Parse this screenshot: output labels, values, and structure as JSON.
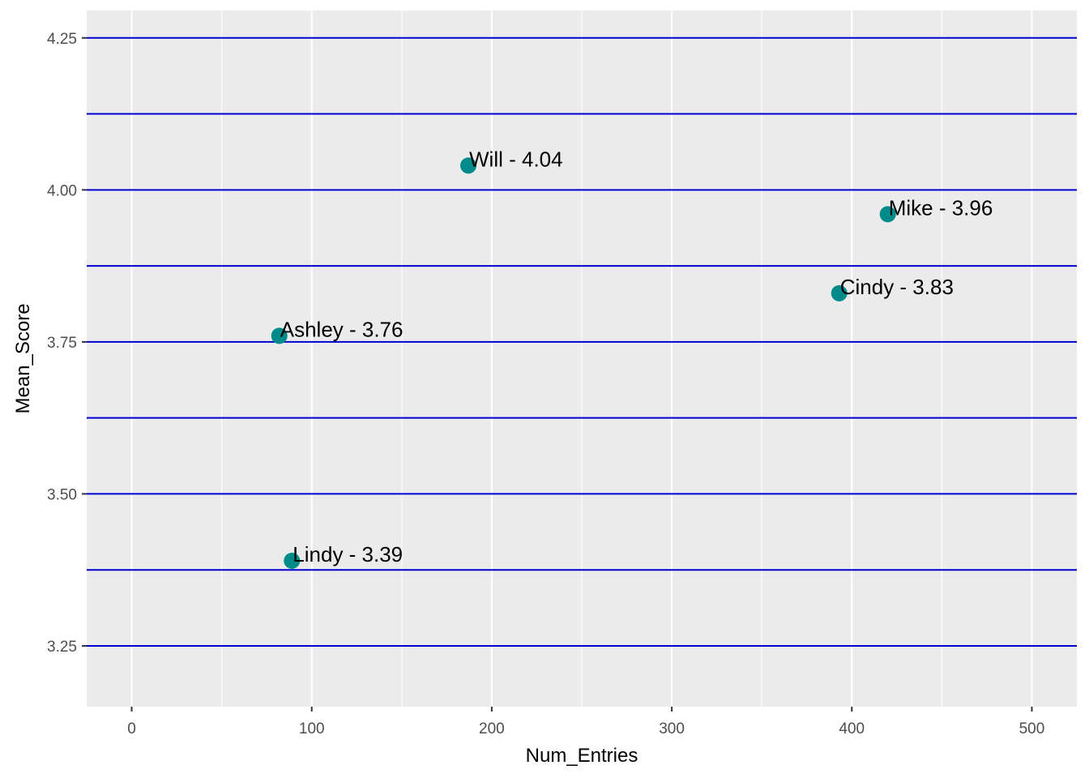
{
  "chart_data": {
    "type": "scatter",
    "xlabel": "Num_Entries",
    "ylabel": "Mean_Score",
    "xlim": [
      -25,
      525
    ],
    "ylim": [
      3.15,
      4.295
    ],
    "x_ticks": [
      0,
      100,
      200,
      300,
      400,
      500
    ],
    "x_tick_labels": [
      "0",
      "100",
      "200",
      "300",
      "400",
      "500"
    ],
    "y_ticks": [
      3.25,
      3.5,
      3.75,
      4.0,
      4.25
    ],
    "y_tick_labels": [
      "3.25",
      "3.50",
      "3.75",
      "4.00",
      "4.25"
    ],
    "hlines": [
      3.25,
      3.375,
      3.5,
      3.625,
      3.75,
      3.875,
      4.0,
      4.125,
      4.25
    ],
    "grid": true,
    "legend": "none",
    "points": [
      {
        "name": "Will",
        "x": 187,
        "y": 4.04,
        "label": "Will - 4.04"
      },
      {
        "name": "Mike",
        "x": 420,
        "y": 3.96,
        "label": "Mike - 3.96"
      },
      {
        "name": "Cindy",
        "x": 393,
        "y": 3.83,
        "label": "Cindy - 3.83"
      },
      {
        "name": "Ashley",
        "x": 82,
        "y": 3.76,
        "label": "Ashley - 3.76"
      },
      {
        "name": "Lindy",
        "x": 89,
        "y": 3.39,
        "label": "Lindy - 3.39"
      }
    ],
    "colors": {
      "panel_background": "#EBEBEB",
      "grid": "#FFFFFF",
      "hline": "#0000CD",
      "point": "#008B8B"
    }
  }
}
